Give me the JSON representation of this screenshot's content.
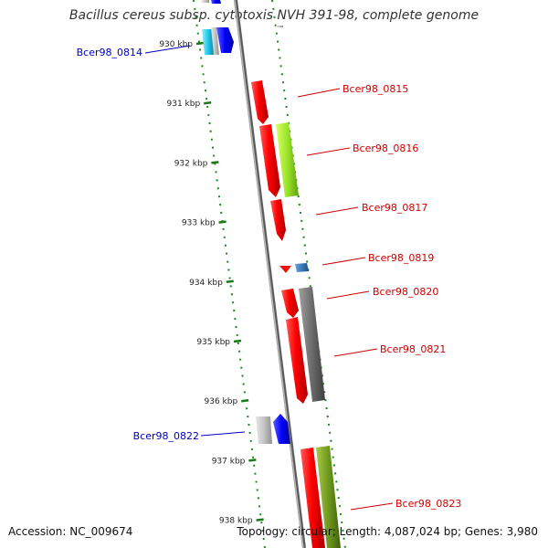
{
  "title": "Bacillus cereus subsp. cytotoxis NVH 391-98, complete genome",
  "footer": {
    "accession": "Accession: NC_009674",
    "summary": "Topology: circular; Length: 4,087,024 bp; Genes: 3,980"
  },
  "colors": {
    "forward_label": "#0000bb",
    "reverse_label": "#cc0000",
    "tick": "#1a7a1a",
    "backbone": "#888888"
  },
  "ticks": [
    "930 kbp",
    "931 kbp",
    "932 kbp",
    "933 kbp",
    "934 kbp",
    "935 kbp",
    "936 kbp",
    "937 kbp",
    "938 kbp"
  ],
  "gene_labels": [
    {
      "text": "Bcer98_0814",
      "strand": "forward"
    },
    {
      "text": "Bcer98_0815",
      "strand": "reverse"
    },
    {
      "text": "Bcer98_0816",
      "strand": "reverse"
    },
    {
      "text": "Bcer98_0817",
      "strand": "reverse"
    },
    {
      "text": "Bcer98_0819",
      "strand": "reverse"
    },
    {
      "text": "Bcer98_0820",
      "strand": "reverse"
    },
    {
      "text": "Bcer98_0821",
      "strand": "reverse"
    },
    {
      "text": "Bcer98_0822",
      "strand": "forward"
    },
    {
      "text": "Bcer98_0823",
      "strand": "reverse"
    }
  ]
}
